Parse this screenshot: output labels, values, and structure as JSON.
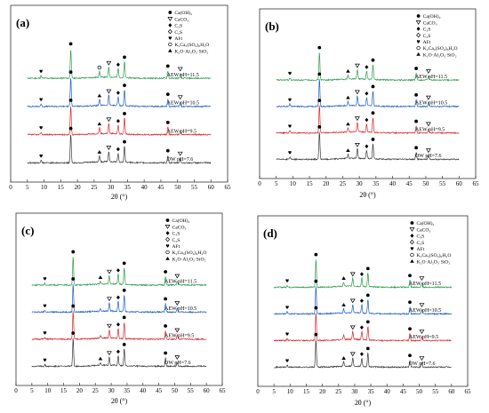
{
  "colors": {
    "axis": "#333333",
    "series": [
      "#2e9b4e",
      "#1f5fc4",
      "#d9262c",
      "#3a3a3a"
    ]
  },
  "chart_data": [
    {
      "type": "line",
      "panel_label": "(a)",
      "xlabel": "2θ (°)",
      "xlim": [
        0,
        65
      ],
      "x_ticks": [
        0,
        5,
        10,
        15,
        20,
        25,
        30,
        35,
        40,
        45,
        50,
        55,
        60,
        65
      ],
      "grid": false,
      "legend_position": "top-right",
      "legend": [
        "Ca(OH)₂",
        "CaCO₃",
        "C₃S",
        "C₂S",
        "AFt",
        "K₂Ca₅(SO₄)₆H₂O",
        "K₂O·Al₂O₃·SiO₂"
      ],
      "series": [
        {
          "name": "AEW pH=11.5",
          "markers": [
            {
              "x": 9.1,
              "phase": "AFt"
            },
            {
              "x": 18.0,
              "phase": "Ca(OH)₂"
            },
            {
              "x": 26.6,
              "phase": "K₂Ca₅(SO₄)₆H₂O"
            },
            {
              "x": 29.4,
              "phase": "CaCO₃"
            },
            {
              "x": 32.2,
              "phase": "C₃S"
            },
            {
              "x": 34.1,
              "phase": "Ca(OH)₂"
            },
            {
              "x": 47.1,
              "phase": "Ca(OH)₂"
            },
            {
              "x": 50.8,
              "phase": "CaCO₃"
            }
          ]
        },
        {
          "name": "AEW pH=10.5",
          "markers": [
            {
              "x": 9.1,
              "phase": "AFt"
            },
            {
              "x": 18.0,
              "phase": "Ca(OH)₂"
            },
            {
              "x": 26.6,
              "phase": "K₂O·Al₂O₃·SiO₂"
            },
            {
              "x": 29.4,
              "phase": "CaCO₃"
            },
            {
              "x": 32.2,
              "phase": "C₃S"
            },
            {
              "x": 34.1,
              "phase": "Ca(OH)₂"
            },
            {
              "x": 47.1,
              "phase": "Ca(OH)₂"
            },
            {
              "x": 50.8,
              "phase": "CaCO₃"
            }
          ]
        },
        {
          "name": "AEW pH=9.5",
          "markers": [
            {
              "x": 9.1,
              "phase": "AFt"
            },
            {
              "x": 18.0,
              "phase": "Ca(OH)₂"
            },
            {
              "x": 26.6,
              "phase": "K₂O·Al₂O₃·SiO₂"
            },
            {
              "x": 29.4,
              "phase": "CaCO₃"
            },
            {
              "x": 32.2,
              "phase": "C₃S"
            },
            {
              "x": 34.1,
              "phase": "Ca(OH)₂"
            },
            {
              "x": 47.1,
              "phase": "Ca(OH)₂"
            }
          ]
        },
        {
          "name": "OW pH=7.6",
          "markers": [
            {
              "x": 9.1,
              "phase": "AFt"
            },
            {
              "x": 18.0,
              "phase": "Ca(OH)₂"
            },
            {
              "x": 26.6,
              "phase": "K₂O·Al₂O₃·SiO₂"
            },
            {
              "x": 29.4,
              "phase": "CaCO₃"
            },
            {
              "x": 32.2,
              "phase": "C₃S"
            },
            {
              "x": 34.1,
              "phase": "Ca(OH)₂"
            },
            {
              "x": 47.1,
              "phase": "Ca(OH)₂"
            },
            {
              "x": 50.8,
              "phase": "CaCO₃"
            }
          ]
        }
      ],
      "peaks": [
        {
          "x": 18.0,
          "h": 1.0
        },
        {
          "x": 34.1,
          "h": 0.55
        },
        {
          "x": 29.4,
          "h": 0.35
        },
        {
          "x": 32.2,
          "h": 0.3
        },
        {
          "x": 47.1,
          "h": 0.25
        },
        {
          "x": 26.6,
          "h": 0.2
        },
        {
          "x": 50.8,
          "h": 0.15
        },
        {
          "x": 9.1,
          "h": 0.08
        }
      ]
    },
    {
      "type": "line",
      "panel_label": "(b)",
      "xlabel": "2θ (°)",
      "xlim": [
        0,
        65
      ],
      "x_ticks": [
        0,
        5,
        10,
        15,
        20,
        25,
        30,
        35,
        40,
        45,
        50,
        55,
        60,
        65
      ],
      "grid": false,
      "legend_position": "top-right",
      "legend": [
        "Ca(OH)₂",
        "CaCO₃",
        "C₃S",
        "C₂S",
        "AFt",
        "K₂Ca₅(SO₄)₆H₂O",
        "K₂O·Al₂O₃·SiO₂"
      ],
      "series": [
        {
          "name": "AEW pH=11.5",
          "markers": [
            {
              "x": 9.1,
              "phase": "AFt"
            },
            {
              "x": 18.0,
              "phase": "Ca(OH)₂"
            },
            {
              "x": 26.6,
              "phase": "K₂O·Al₂O₃·SiO₂"
            },
            {
              "x": 29.4,
              "phase": "CaCO₃"
            },
            {
              "x": 32.2,
              "phase": "C₃S"
            },
            {
              "x": 34.1,
              "phase": "Ca(OH)₂"
            },
            {
              "x": 47.1,
              "phase": "Ca(OH)₂"
            },
            {
              "x": 50.8,
              "phase": "CaCO₃"
            }
          ]
        },
        {
          "name": "AEW pH=10.5",
          "markers": [
            {
              "x": 9.1,
              "phase": "AFt"
            },
            {
              "x": 18.0,
              "phase": "Ca(OH)₂"
            },
            {
              "x": 26.6,
              "phase": "K₂O·Al₂O₃·SiO₂"
            },
            {
              "x": 29.4,
              "phase": "CaCO₃"
            },
            {
              "x": 32.2,
              "phase": "C₃S"
            },
            {
              "x": 34.1,
              "phase": "Ca(OH)₂"
            },
            {
              "x": 47.1,
              "phase": "Ca(OH)₂"
            },
            {
              "x": 50.8,
              "phase": "CaCO₃"
            }
          ]
        },
        {
          "name": "AEW pH=9.5",
          "markers": [
            {
              "x": 9.1,
              "phase": "AFt"
            },
            {
              "x": 18.0,
              "phase": "Ca(OH)₂"
            },
            {
              "x": 26.6,
              "phase": "K₂O·Al₂O₃·SiO₂"
            },
            {
              "x": 29.4,
              "phase": "CaCO₃"
            },
            {
              "x": 32.2,
              "phase": "C₃S"
            },
            {
              "x": 34.1,
              "phase": "Ca(OH)₂"
            },
            {
              "x": 47.1,
              "phase": "Ca(OH)₂"
            },
            {
              "x": 50.8,
              "phase": "CaCO₃"
            }
          ]
        },
        {
          "name": "OW pH=7.6",
          "markers": [
            {
              "x": 9.1,
              "phase": "AFt"
            },
            {
              "x": 18.0,
              "phase": "Ca(OH)₂"
            },
            {
              "x": 26.6,
              "phase": "K₂O·Al₂O₃·SiO₂"
            },
            {
              "x": 29.4,
              "phase": "CaCO₃"
            },
            {
              "x": 32.2,
              "phase": "C₃S"
            },
            {
              "x": 34.1,
              "phase": "Ca(OH)₂"
            },
            {
              "x": 47.1,
              "phase": "Ca(OH)₂"
            },
            {
              "x": 50.8,
              "phase": "CaCO₃"
            }
          ]
        }
      ],
      "peaks": [
        {
          "x": 18.0,
          "h": 1.0
        },
        {
          "x": 34.1,
          "h": 0.55
        },
        {
          "x": 29.4,
          "h": 0.35
        },
        {
          "x": 32.2,
          "h": 0.3
        },
        {
          "x": 47.1,
          "h": 0.25
        },
        {
          "x": 26.6,
          "h": 0.15
        },
        {
          "x": 50.8,
          "h": 0.15
        },
        {
          "x": 9.1,
          "h": 0.08
        }
      ]
    },
    {
      "type": "line",
      "panel_label": "(c)",
      "xlabel": "2θ (°)",
      "xlim": [
        0,
        65
      ],
      "x_ticks": [
        0,
        5,
        10,
        15,
        20,
        25,
        30,
        35,
        40,
        45,
        50,
        55,
        60,
        65
      ],
      "grid": false,
      "legend_position": "top-right",
      "legend": [
        "Ca(OH)₂",
        "CaCO₃",
        "C₃S",
        "C₂S",
        "AFt",
        "K₂Ca₅(SO₄)₆H₂O",
        "K₂O·Al₂O₃·SiO₂"
      ],
      "series": [
        {
          "name": "AEW pH=11.5",
          "markers": [
            {
              "x": 9.1,
              "phase": "AFt"
            },
            {
              "x": 18.0,
              "phase": "Ca(OH)₂"
            },
            {
              "x": 26.6,
              "phase": "K₂O·Al₂O₃·SiO₂"
            },
            {
              "x": 29.4,
              "phase": "CaCO₃"
            },
            {
              "x": 32.2,
              "phase": "C₃S"
            },
            {
              "x": 34.1,
              "phase": "Ca(OH)₂"
            },
            {
              "x": 47.1,
              "phase": "Ca(OH)₂"
            },
            {
              "x": 50.8,
              "phase": "CaCO₃"
            }
          ]
        },
        {
          "name": "AEW pH=10.5",
          "markers": [
            {
              "x": 9.1,
              "phase": "AFt"
            },
            {
              "x": 18.0,
              "phase": "Ca(OH)₂"
            },
            {
              "x": 29.4,
              "phase": "CaCO₃"
            },
            {
              "x": 32.2,
              "phase": "C₃S"
            },
            {
              "x": 34.1,
              "phase": "Ca(OH)₂"
            },
            {
              "x": 47.1,
              "phase": "Ca(OH)₂"
            },
            {
              "x": 50.8,
              "phase": "CaCO₃"
            }
          ]
        },
        {
          "name": "AEW pH=9.5",
          "markers": [
            {
              "x": 9.1,
              "phase": "AFt"
            },
            {
              "x": 18.0,
              "phase": "Ca(OH)₂"
            },
            {
              "x": 29.4,
              "phase": "CaCO₃"
            },
            {
              "x": 32.2,
              "phase": "C₃S"
            },
            {
              "x": 34.1,
              "phase": "Ca(OH)₂"
            },
            {
              "x": 47.1,
              "phase": "Ca(OH)₂"
            },
            {
              "x": 50.8,
              "phase": "CaCO₃"
            }
          ]
        },
        {
          "name": "OW pH=7.6",
          "markers": [
            {
              "x": 9.1,
              "phase": "AFt"
            },
            {
              "x": 18.0,
              "phase": "Ca(OH)₂"
            },
            {
              "x": 26.6,
              "phase": "K₂O·Al₂O₃·SiO₂"
            },
            {
              "x": 29.4,
              "phase": "CaCO₃"
            },
            {
              "x": 32.2,
              "phase": "C₃S"
            },
            {
              "x": 34.1,
              "phase": "Ca(OH)₂"
            },
            {
              "x": 47.1,
              "phase": "Ca(OH)₂"
            },
            {
              "x": 50.8,
              "phase": "CaCO₃"
            }
          ]
        }
      ],
      "peaks": [
        {
          "x": 18.0,
          "h": 1.0
        },
        {
          "x": 34.1,
          "h": 0.6
        },
        {
          "x": 29.4,
          "h": 0.3
        },
        {
          "x": 32.2,
          "h": 0.35
        },
        {
          "x": 47.1,
          "h": 0.3
        },
        {
          "x": 26.6,
          "h": 0.1
        },
        {
          "x": 50.8,
          "h": 0.15
        },
        {
          "x": 9.1,
          "h": 0.06
        }
      ]
    },
    {
      "type": "line",
      "panel_label": "(d)",
      "xlabel": "2θ (°)",
      "xlim": [
        0,
        65
      ],
      "x_ticks": [
        0,
        5,
        10,
        15,
        20,
        25,
        30,
        35,
        40,
        45,
        50,
        55,
        60,
        65
      ],
      "grid": false,
      "legend_position": "top-right",
      "legend": [
        "Ca(OH)₂",
        "CaCO₃",
        "C₃S",
        "C₂S",
        "AFt",
        "K₂Ca₅(SO₄)₆H₂O",
        "K₂O·Al₂O₃·SiO₂"
      ],
      "series": [
        {
          "name": "AEW pH=11.5",
          "markers": [
            {
              "x": 9.1,
              "phase": "AFt"
            },
            {
              "x": 18.0,
              "phase": "Ca(OH)₂"
            },
            {
              "x": 26.6,
              "phase": "K₂O·Al₂O₃·SiO₂"
            },
            {
              "x": 29.4,
              "phase": "CaCO₃"
            },
            {
              "x": 32.2,
              "phase": "C₃S"
            },
            {
              "x": 34.1,
              "phase": "Ca(OH)₂"
            },
            {
              "x": 47.1,
              "phase": "Ca(OH)₂"
            },
            {
              "x": 50.8,
              "phase": "CaCO₃"
            }
          ]
        },
        {
          "name": "AEW pH=10.5",
          "markers": [
            {
              "x": 9.1,
              "phase": "AFt"
            },
            {
              "x": 18.0,
              "phase": "Ca(OH)₂"
            },
            {
              "x": 26.6,
              "phase": "K₂O·Al₂O₃·SiO₂"
            },
            {
              "x": 29.4,
              "phase": "CaCO₃"
            },
            {
              "x": 32.2,
              "phase": "C₃S"
            },
            {
              "x": 34.1,
              "phase": "Ca(OH)₂"
            },
            {
              "x": 47.1,
              "phase": "Ca(OH)₂"
            },
            {
              "x": 50.8,
              "phase": "CaCO₃"
            }
          ]
        },
        {
          "name": "AEW pH=9.5",
          "markers": [
            {
              "x": 9.1,
              "phase": "AFt"
            },
            {
              "x": 18.0,
              "phase": "Ca(OH)₂"
            },
            {
              "x": 29.4,
              "phase": "CaCO₃"
            },
            {
              "x": 32.2,
              "phase": "C₃S"
            },
            {
              "x": 34.1,
              "phase": "Ca(OH)₂"
            },
            {
              "x": 47.1,
              "phase": "Ca(OH)₂"
            },
            {
              "x": 50.8,
              "phase": "CaCO₃"
            }
          ]
        },
        {
          "name": "OW pH=7.6",
          "markers": [
            {
              "x": 9.1,
              "phase": "AFt"
            },
            {
              "x": 18.0,
              "phase": "Ca(OH)₂"
            },
            {
              "x": 26.6,
              "phase": "K₂O·Al₂O₃·SiO₂"
            },
            {
              "x": 29.4,
              "phase": "CaCO₃"
            },
            {
              "x": 32.2,
              "phase": "C₃S"
            },
            {
              "x": 34.1,
              "phase": "Ca(OH)₂"
            },
            {
              "x": 47.1,
              "phase": "Ca(OH)₂"
            },
            {
              "x": 50.8,
              "phase": "CaCO₃"
            }
          ]
        }
      ],
      "peaks": [
        {
          "x": 18.0,
          "h": 1.0
        },
        {
          "x": 34.1,
          "h": 0.5
        },
        {
          "x": 29.4,
          "h": 0.3
        },
        {
          "x": 32.2,
          "h": 0.3
        },
        {
          "x": 47.1,
          "h": 0.25
        },
        {
          "x": 26.6,
          "h": 0.15
        },
        {
          "x": 50.8,
          "h": 0.15
        },
        {
          "x": 9.1,
          "h": 0.07
        }
      ]
    }
  ]
}
